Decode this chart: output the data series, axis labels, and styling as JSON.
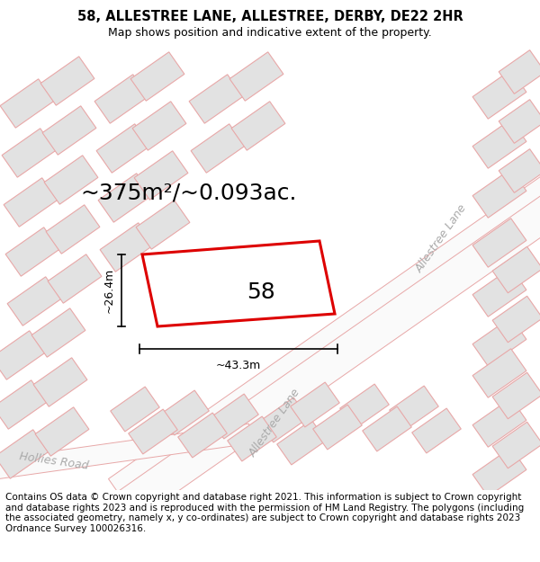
{
  "title": "58, ALLESTREE LANE, ALLESTREE, DERBY, DE22 2HR",
  "subtitle": "Map shows position and indicative extent of the property.",
  "area_text": "~375m²/~0.093ac.",
  "label_58": "58",
  "dim_h": "~43.3m",
  "dim_v": "~26.4m",
  "road_label_tr": "Allestree Lane",
  "road_label_bl": "Allestree Lane",
  "road_label_hr": "Hollies Road",
  "copyright_text": "Contains OS data © Crown copyright and database right 2021. This information is subject to Crown copyright and database rights 2023 and is reproduced with the permission of HM Land Registry. The polygons (including the associated geometry, namely x, y co-ordinates) are subject to Crown copyright and database rights 2023 Ordnance Survey 100026316.",
  "map_bg": "#f2f2f2",
  "building_fill": "#e2e2e2",
  "building_stroke": "#e8a8a8",
  "road_fill": "#fafafa",
  "road_stroke": "#e8a8a8",
  "property_stroke": "#dd0000",
  "property_fill": "#ffffff",
  "title_fontsize": 10.5,
  "subtitle_fontsize": 9,
  "area_fontsize": 18,
  "label_fontsize": 18,
  "dim_fontsize": 9,
  "road_fontsize": 9,
  "footer_fontsize": 7.5
}
